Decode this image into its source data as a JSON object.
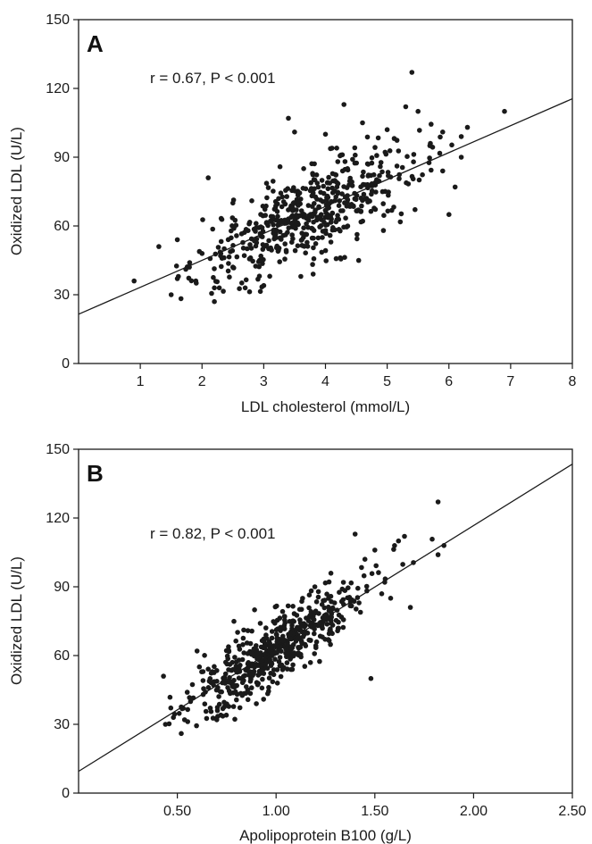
{
  "chart_data": [
    {
      "type": "scatter",
      "panel_label": "A",
      "annotation": "r = 0.67, P < 0.001",
      "xlabel": "LDL cholesterol (mmol/L)",
      "ylabel": "Oxidized LDL (U/L)",
      "xlim": [
        0,
        8
      ],
      "ylim": [
        0,
        150
      ],
      "xticks": [
        1,
        2,
        3,
        4,
        5,
        6,
        7,
        8
      ],
      "xtick_labels": [
        "1",
        "2",
        "3",
        "4",
        "5",
        "6",
        "7",
        "8"
      ],
      "yticks": [
        0,
        30,
        60,
        90,
        120,
        150
      ],
      "ytick_labels": [
        "0",
        "30",
        "60",
        "90",
        "120",
        "150"
      ],
      "grid": false,
      "fit_line": {
        "x": [
          0,
          8
        ],
        "y": [
          21.5,
          115.5
        ]
      },
      "points_summary": {
        "n": 560,
        "x_center": 3.75,
        "x_sd": 0.9,
        "y_sd_residual": 9.5,
        "x_range": [
          0.9,
          6.9
        ],
        "y_range": [
          26,
          127
        ]
      },
      "points": [
        [
          0.9,
          36
        ],
        [
          1.3,
          51
        ],
        [
          1.5,
          30
        ],
        [
          1.6,
          54
        ],
        [
          1.6,
          37
        ],
        [
          1.8,
          44
        ],
        [
          1.9,
          36
        ],
        [
          2.0,
          48
        ],
        [
          2.1,
          81
        ],
        [
          2.2,
          27
        ],
        [
          2.2,
          33
        ],
        [
          2.3,
          47
        ],
        [
          2.5,
          70
        ],
        [
          2.7,
          33
        ],
        [
          3.0,
          34
        ],
        [
          3.4,
          107
        ],
        [
          3.5,
          101
        ],
        [
          3.6,
          38
        ],
        [
          3.8,
          39
        ],
        [
          4.0,
          100
        ],
        [
          4.3,
          113
        ],
        [
          4.6,
          105
        ],
        [
          5.0,
          102
        ],
        [
          5.3,
          112
        ],
        [
          5.4,
          127
        ],
        [
          5.5,
          110
        ],
        [
          5.7,
          96
        ],
        [
          5.9,
          101
        ],
        [
          6.0,
          65
        ],
        [
          6.1,
          77
        ],
        [
          6.2,
          99
        ],
        [
          6.3,
          103
        ],
        [
          6.9,
          110
        ],
        [
          6.2,
          90
        ],
        [
          5.9,
          84
        ]
      ]
    },
    {
      "type": "scatter",
      "panel_label": "B",
      "annotation": "r = 0.82, P < 0.001",
      "xlabel": "Apolipoprotein B100 (g/L)",
      "ylabel": "Oxidized LDL (U/L)",
      "xlim": [
        0,
        2.5
      ],
      "ylim": [
        0,
        150
      ],
      "xticks": [
        0.5,
        1.0,
        1.5,
        2.0,
        2.5
      ],
      "xtick_labels": [
        "0.50",
        "1.00",
        "1.50",
        "2.00",
        "2.50"
      ],
      "yticks": [
        0,
        30,
        60,
        90,
        120,
        150
      ],
      "ytick_labels": [
        "0",
        "30",
        "60",
        "90",
        "120",
        "150"
      ],
      "grid": false,
      "fit_line": {
        "x": [
          0,
          2.5
        ],
        "y": [
          9.5,
          143.5
        ]
      },
      "points_summary": {
        "n": 560,
        "x_center": 1.0,
        "x_sd": 0.22,
        "y_sd_residual": 7.5,
        "x_range": [
          0.43,
          1.85
        ],
        "y_range": [
          26,
          127
        ]
      },
      "points": [
        [
          0.43,
          51
        ],
        [
          0.44,
          30
        ],
        [
          0.48,
          33
        ],
        [
          0.52,
          26
        ],
        [
          0.53,
          37
        ],
        [
          0.55,
          44
        ],
        [
          0.6,
          62
        ],
        [
          0.7,
          32
        ],
        [
          0.72,
          34
        ],
        [
          0.9,
          39
        ],
        [
          1.4,
          113
        ],
        [
          1.45,
          102
        ],
        [
          1.48,
          50
        ],
        [
          1.5,
          106
        ],
        [
          1.6,
          108
        ],
        [
          1.62,
          110
        ],
        [
          1.65,
          112
        ],
        [
          1.68,
          81
        ],
        [
          1.82,
          127
        ],
        [
          1.82,
          104
        ],
        [
          1.85,
          108
        ],
        [
          1.55,
          92
        ],
        [
          1.58,
          85
        ],
        [
          1.42,
          83
        ]
      ]
    }
  ]
}
